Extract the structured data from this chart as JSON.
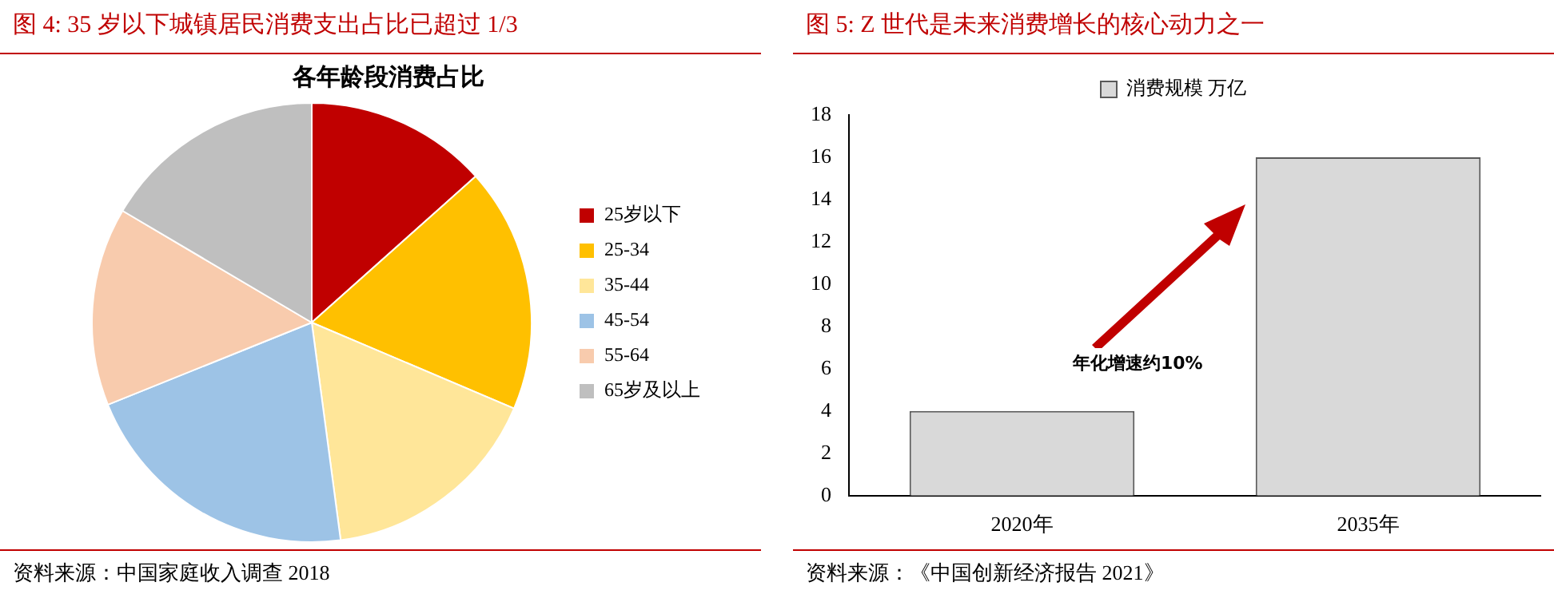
{
  "chart_data": [
    {
      "type": "pie",
      "title": "图 4:   35 岁以下城镇居民消费支出占比已超过 1/3",
      "subtitle": "各年龄段消费占比",
      "categories": [
        "25岁以下",
        "25-34",
        "35-44",
        "45-54",
        "55-64",
        "65岁及以上"
      ],
      "values": [
        13.4,
        18,
        16.5,
        21,
        14.6,
        16.5
      ],
      "colors": [
        "#c00000",
        "#ffc000",
        "#ffe699",
        "#9dc3e6",
        "#f8cbad",
        "#bfbfbf"
      ],
      "legend": "right",
      "annotations": [
        "资料来源：中国家庭收入调查 2018"
      ]
    },
    {
      "type": "bar",
      "title": "图 5:   Z 世代是未来消费增长的核心动力之一",
      "categories": [
        "2020年",
        "2035年"
      ],
      "series": [
        {
          "name": "消费规模 万亿",
          "color": "#d9d9d9",
          "values": [
            4,
            16
          ]
        }
      ],
      "ylim": [
        0,
        18
      ],
      "yticks": [
        0,
        2,
        4,
        6,
        8,
        10,
        12,
        14,
        16,
        18
      ],
      "grid": false,
      "legend": "top",
      "annotations": [
        "年化增速约10%",
        "资料来源：《中国创新经济报告 2021》"
      ]
    }
  ]
}
